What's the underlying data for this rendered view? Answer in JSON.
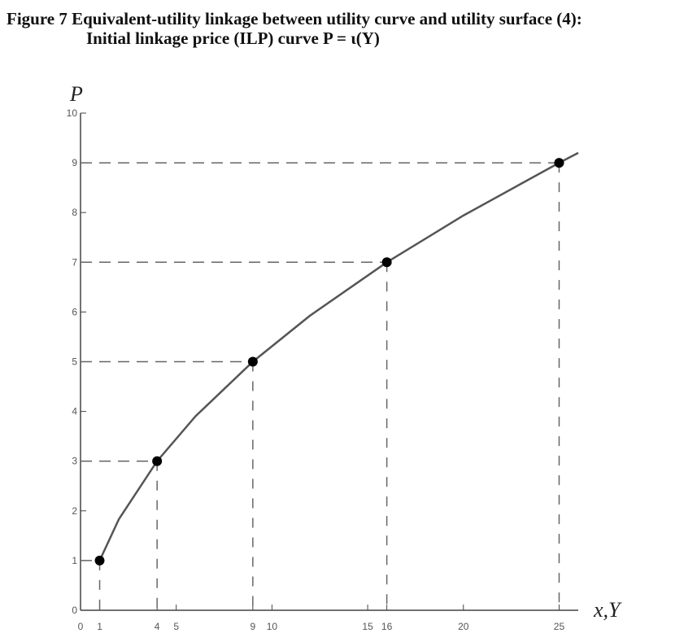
{
  "chart_data": {
    "type": "line",
    "title": "Figure 7  Equivalent-utility linkage between utility curve and utility surface (4):",
    "subtitle": "Initial linkage price (ILP) curve P = ι(Y)",
    "y_label": "P",
    "x_label": "x,Y",
    "x": [
      1,
      2,
      4,
      6,
      9,
      12,
      16,
      20,
      25,
      26
    ],
    "series": [
      {
        "name": "ILP curve",
        "color": "#555555",
        "values": [
          1,
          1.83,
          3,
          3.9,
          5,
          5.93,
          7,
          7.94,
          9,
          9.2
        ]
      }
    ],
    "points": {
      "x": [
        1,
        4,
        9,
        16,
        25
      ],
      "values": [
        1,
        3,
        5,
        7,
        9
      ],
      "color": "#000000"
    },
    "xlim": [
      0,
      26
    ],
    "ylim": [
      0,
      10
    ],
    "xticks": [
      0,
      1,
      4,
      5,
      9,
      10,
      15,
      16,
      20,
      25
    ],
    "yticks": [
      0,
      1,
      2,
      3,
      4,
      5,
      6,
      7,
      8,
      9,
      10
    ]
  }
}
